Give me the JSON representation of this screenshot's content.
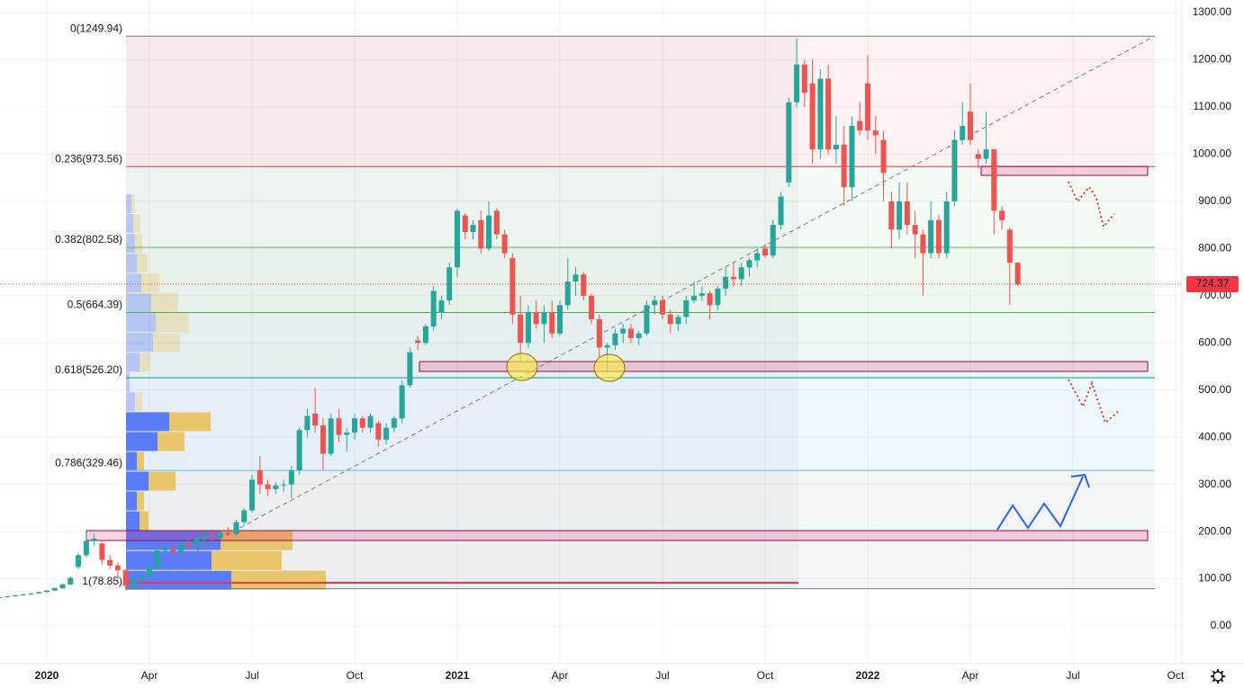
{
  "chart_data": {
    "type": "candlestick",
    "up_color": "#26a69a",
    "down_color": "#ef5350",
    "x": [
      -6,
      -5,
      -4,
      -3,
      -2,
      -1,
      0,
      1,
      2,
      3,
      4,
      5,
      6,
      7,
      8,
      9,
      10,
      11,
      12,
      13,
      14,
      15,
      16,
      17,
      18,
      19,
      20,
      21,
      22,
      23,
      24,
      25,
      26,
      27,
      28,
      29,
      30,
      31,
      32,
      33,
      34,
      35,
      36,
      37,
      38,
      39,
      40,
      41,
      42,
      43,
      44,
      45,
      46,
      47,
      48,
      49,
      50,
      51,
      52,
      53,
      54,
      55,
      56,
      57,
      58,
      59,
      60,
      61,
      62,
      63,
      64,
      65,
      66,
      67,
      68,
      69,
      70,
      71,
      72,
      73,
      74,
      75,
      76,
      77,
      78,
      79,
      80,
      81,
      82,
      83,
      84,
      85,
      86,
      87,
      88,
      89,
      90,
      91,
      92,
      93,
      94,
      95,
      96,
      97,
      98,
      99,
      100,
      101,
      102,
      103,
      104,
      105,
      106,
      107,
      108,
      109,
      110,
      111,
      112,
      113,
      114,
      115,
      116,
      117,
      118,
      119,
      120,
      121,
      122,
      123
    ],
    "ohlc": [
      [
        60,
        62,
        59,
        61
      ],
      [
        61,
        64,
        60,
        63
      ],
      [
        63,
        66,
        62,
        65
      ],
      [
        65,
        68,
        64,
        67
      ],
      [
        67,
        70,
        66,
        69
      ],
      [
        69,
        73,
        68,
        72
      ],
      [
        72,
        76,
        71,
        75
      ],
      [
        75,
        82,
        74,
        80
      ],
      [
        80,
        90,
        79,
        88
      ],
      [
        88,
        105,
        86,
        102
      ],
      [
        125,
        155,
        120,
        150
      ],
      [
        150,
        200,
        145,
        180
      ],
      [
        180,
        195,
        170,
        185
      ],
      [
        175,
        178,
        130,
        140
      ],
      [
        140,
        150,
        120,
        128
      ],
      [
        128,
        135,
        100,
        118
      ],
      [
        118,
        120,
        75,
        85
      ],
      [
        85,
        105,
        80,
        98
      ],
      [
        98,
        110,
        92,
        105
      ],
      [
        105,
        130,
        100,
        125
      ],
      [
        125,
        165,
        120,
        160
      ],
      [
        160,
        172,
        150,
        165
      ],
      [
        165,
        175,
        148,
        158
      ],
      [
        158,
        180,
        155,
        175
      ],
      [
        175,
        185,
        165,
        170
      ],
      [
        170,
        190,
        168,
        185
      ],
      [
        185,
        200,
        178,
        192
      ],
      [
        192,
        205,
        180,
        188
      ],
      [
        188,
        200,
        182,
        198
      ],
      [
        198,
        210,
        190,
        195
      ],
      [
        195,
        225,
        190,
        220
      ],
      [
        220,
        250,
        215,
        245
      ],
      [
        245,
        320,
        240,
        310
      ],
      [
        330,
        360,
        280,
        300
      ],
      [
        300,
        310,
        275,
        290
      ],
      [
        290,
        305,
        280,
        298
      ],
      [
        298,
        310,
        285,
        300
      ],
      [
        300,
        340,
        270,
        330
      ],
      [
        330,
        420,
        320,
        415
      ],
      [
        415,
        460,
        400,
        445
      ],
      [
        450,
        505,
        410,
        425
      ],
      [
        425,
        440,
        330,
        365
      ],
      [
        365,
        450,
        360,
        440
      ],
      [
        440,
        460,
        390,
        405
      ],
      [
        405,
        420,
        370,
        410
      ],
      [
        410,
        450,
        395,
        440
      ],
      [
        440,
        445,
        410,
        420
      ],
      [
        420,
        450,
        410,
        445
      ],
      [
        430,
        435,
        380,
        395
      ],
      [
        395,
        430,
        385,
        420
      ],
      [
        420,
        445,
        410,
        440
      ],
      [
        440,
        520,
        430,
        510
      ],
      [
        510,
        590,
        505,
        580
      ],
      [
        605,
        615,
        585,
        600
      ],
      [
        600,
        640,
        595,
        635
      ],
      [
        635,
        720,
        625,
        710
      ],
      [
        665,
        700,
        650,
        690
      ],
      [
        690,
        770,
        680,
        760
      ],
      [
        760,
        885,
        740,
        880
      ],
      [
        870,
        875,
        820,
        835
      ],
      [
        835,
        860,
        820,
        850
      ],
      [
        860,
        880,
        790,
        800
      ],
      [
        800,
        900,
        795,
        870
      ],
      [
        880,
        885,
        820,
        830
      ],
      [
        830,
        840,
        780,
        790
      ],
      [
        780,
        790,
        640,
        660
      ],
      [
        660,
        700,
        560,
        600
      ],
      [
        600,
        680,
        590,
        665
      ],
      [
        665,
        690,
        630,
        640
      ],
      [
        640,
        680,
        600,
        665
      ],
      [
        665,
        690,
        610,
        620
      ],
      [
        620,
        690,
        615,
        680
      ],
      [
        680,
        780,
        670,
        730
      ],
      [
        730,
        760,
        700,
        745
      ],
      [
        745,
        750,
        690,
        700
      ],
      [
        700,
        705,
        640,
        650
      ],
      [
        650,
        660,
        570,
        590
      ],
      [
        590,
        600,
        535,
        595
      ],
      [
        595,
        630,
        585,
        620
      ],
      [
        620,
        640,
        600,
        630
      ],
      [
        630,
        640,
        600,
        610
      ],
      [
        610,
        625,
        595,
        620
      ],
      [
        620,
        690,
        615,
        680
      ],
      [
        680,
        700,
        660,
        690
      ],
      [
        690,
        700,
        650,
        660
      ],
      [
        660,
        670,
        620,
        640
      ],
      [
        640,
        660,
        625,
        655
      ],
      [
        655,
        700,
        640,
        690
      ],
      [
        690,
        730,
        685,
        700
      ],
      [
        700,
        720,
        690,
        705
      ],
      [
        705,
        710,
        650,
        680
      ],
      [
        680,
        720,
        670,
        715
      ],
      [
        715,
        760,
        700,
        740
      ],
      [
        740,
        770,
        720,
        735
      ],
      [
        735,
        770,
        720,
        760
      ],
      [
        760,
        780,
        740,
        775
      ],
      [
        775,
        800,
        760,
        790
      ],
      [
        800,
        810,
        780,
        785
      ],
      [
        785,
        860,
        780,
        850
      ],
      [
        850,
        920,
        840,
        910
      ],
      [
        940,
        1120,
        930,
        1110
      ],
      [
        1110,
        1245,
        1100,
        1190
      ],
      [
        1190,
        1200,
        1100,
        1130
      ],
      [
        1150,
        1200,
        980,
        1010
      ],
      [
        1010,
        1180,
        990,
        1160
      ],
      [
        1160,
        1190,
        1000,
        1010
      ],
      [
        1010,
        1080,
        980,
        1020
      ],
      [
        1020,
        1060,
        890,
        930
      ],
      [
        930,
        1080,
        900,
        1060
      ],
      [
        1070,
        1110,
        1040,
        1050
      ],
      [
        1150,
        1210,
        1030,
        1050
      ],
      [
        1050,
        1080,
        1000,
        1040
      ],
      [
        1030,
        1050,
        900,
        960
      ],
      [
        900,
        920,
        800,
        840
      ],
      [
        840,
        940,
        820,
        900
      ],
      [
        900,
        940,
        830,
        850
      ],
      [
        850,
        880,
        780,
        830
      ],
      [
        830,
        840,
        700,
        790
      ],
      [
        790,
        900,
        780,
        860
      ],
      [
        860,
        870,
        780,
        790
      ],
      [
        790,
        920,
        780,
        900
      ],
      [
        900,
        1050,
        890,
        1030
      ],
      [
        1030,
        1110,
        1020,
        1060
      ],
      [
        1090,
        1150,
        1020,
        1030
      ],
      [
        1000,
        1010,
        970,
        990
      ],
      [
        990,
        1090,
        980,
        1010
      ],
      [
        1010,
        1010,
        830,
        880
      ],
      [
        880,
        890,
        840,
        860
      ],
      [
        840,
        845,
        680,
        770
      ],
      [
        770,
        770,
        720,
        724.37
      ]
    ],
    "xlim": [
      -5.93,
      143.8
    ],
    "ylim": [
      -80,
      1326.7
    ],
    "xticks": [
      {
        "value": 0,
        "label": "2020"
      },
      {
        "value": 13,
        "label": "Apr"
      },
      {
        "value": 26,
        "label": "Jul"
      },
      {
        "value": 39,
        "label": "Oct"
      },
      {
        "value": 52,
        "label": "2021"
      },
      {
        "value": 65,
        "label": "Apr"
      },
      {
        "value": 78,
        "label": "Jul"
      },
      {
        "value": 91,
        "label": "Oct"
      },
      {
        "value": 104,
        "label": "2022"
      },
      {
        "value": 117,
        "label": "Apr"
      },
      {
        "value": 130,
        "label": "Jul"
      },
      {
        "value": 143,
        "label": "Oct"
      }
    ],
    "yticks": [
      {
        "value": 0,
        "label": "0.00"
      },
      {
        "value": 100,
        "label": "100.00"
      },
      {
        "value": 200,
        "label": "200.00"
      },
      {
        "value": 300,
        "label": "300.00"
      },
      {
        "value": 400,
        "label": "400.00"
      },
      {
        "value": 500,
        "label": "500.00"
      },
      {
        "value": 600,
        "label": "600.00"
      },
      {
        "value": 700,
        "label": "700.00"
      },
      {
        "value": 800,
        "label": "800.00"
      },
      {
        "value": 900,
        "label": "900.00"
      },
      {
        "value": 1000,
        "label": "1000.00"
      },
      {
        "value": 1100,
        "label": "1100.00"
      },
      {
        "value": 1200,
        "label": "1200.00"
      },
      {
        "value": 1300,
        "label": "1300.00"
      }
    ],
    "grid": true,
    "last_price": 724.37,
    "last_price_color": "#f23645",
    "fib_levels": [
      {
        "label": "0(1249.94)",
        "value": 1249.94,
        "color": "#787b86",
        "band": "rgba(242,54,69,0.07)"
      },
      {
        "label": "0.236(973.56)",
        "value": 973.56,
        "color": "#e53935",
        "band": "rgba(129,199,132,0.09)"
      },
      {
        "label": "0.382(802.58)",
        "value": 802.58,
        "color": "#66bb6a",
        "band": "rgba(76,175,80,0.09)"
      },
      {
        "label": "0.5(664.39)",
        "value": 664.39,
        "color": "#4caf50",
        "band": "rgba(8,153,129,0.08)"
      },
      {
        "label": "0.618(526.20)",
        "value": 526.2,
        "color": "#089981",
        "band": "rgba(33,150,243,0.08)"
      },
      {
        "label": "0.786(329.46)",
        "value": 329.46,
        "color": "#64b5f6",
        "band": "rgba(120,123,134,0.07)"
      },
      {
        "label": "1(78.85)",
        "value": 78.85,
        "color": "#787b86"
      }
    ],
    "volume_profile": {
      "bins": [
        75,
        117,
        159,
        201,
        243,
        285,
        327,
        369,
        411,
        453,
        495,
        537,
        579,
        621,
        663,
        705,
        747,
        789,
        831,
        873,
        915
      ],
      "up": [
        117,
        95,
        105,
        15,
        12,
        25,
        12,
        35,
        48,
        10,
        4,
        15,
        30,
        33,
        28,
        17,
        12,
        10,
        8,
        6
      ],
      "down": [
        105,
        78,
        80,
        10,
        8,
        30,
        8,
        30,
        46,
        8,
        0,
        12,
        30,
        37,
        30,
        20,
        12,
        8,
        8,
        4
      ],
      "up_color": "#5b7cfa",
      "down_color": "#e8c46a"
    }
  }
}
